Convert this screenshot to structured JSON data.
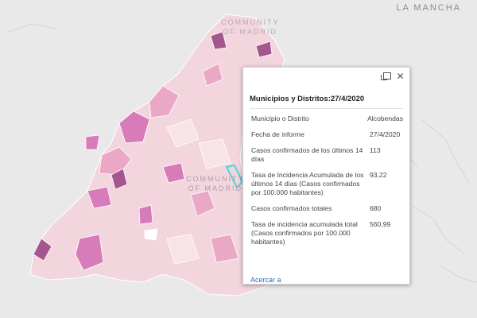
{
  "map": {
    "region_label": "LA MANCHA",
    "community_label_top": [
      "COMMUNITY",
      "OF MADRID"
    ],
    "community_label_center": [
      "COMMUNITY",
      "OF MADRID"
    ]
  },
  "popup": {
    "title": "Municipios y Distritos:27/4/2020",
    "fields": [
      {
        "label": "Municipio o Distrito",
        "value": "Alcobendas"
      },
      {
        "label": "Fecha de informe",
        "value": "27/4/2020"
      },
      {
        "label": "Casos confirmados de los últimos 14 días",
        "value": "113"
      },
      {
        "label": "Tasa de Incidencia Acumulada de los últimos 14 días (Casos confirmados por 100.000 habitantes)",
        "value": "93,22"
      },
      {
        "label": "Casos confirmados totales",
        "value": "680"
      },
      {
        "label": "Tasa de incidencia acumulada total (Casos confirmados por 100.000 habitantes)",
        "value": "560,99"
      }
    ],
    "zoom_link": "Acercar a",
    "dock_icon": "dock-icon",
    "close_icon": "close-icon"
  },
  "colors": {
    "background": "#e9e9e9",
    "region_fill": "#f3d6dd",
    "light": "#f7e3e8",
    "medium": "#eaa8c6",
    "strong": "#d77bb9",
    "dark": "#a4568e",
    "highlight": "#49d6e0",
    "link": "#2a6fb0"
  }
}
